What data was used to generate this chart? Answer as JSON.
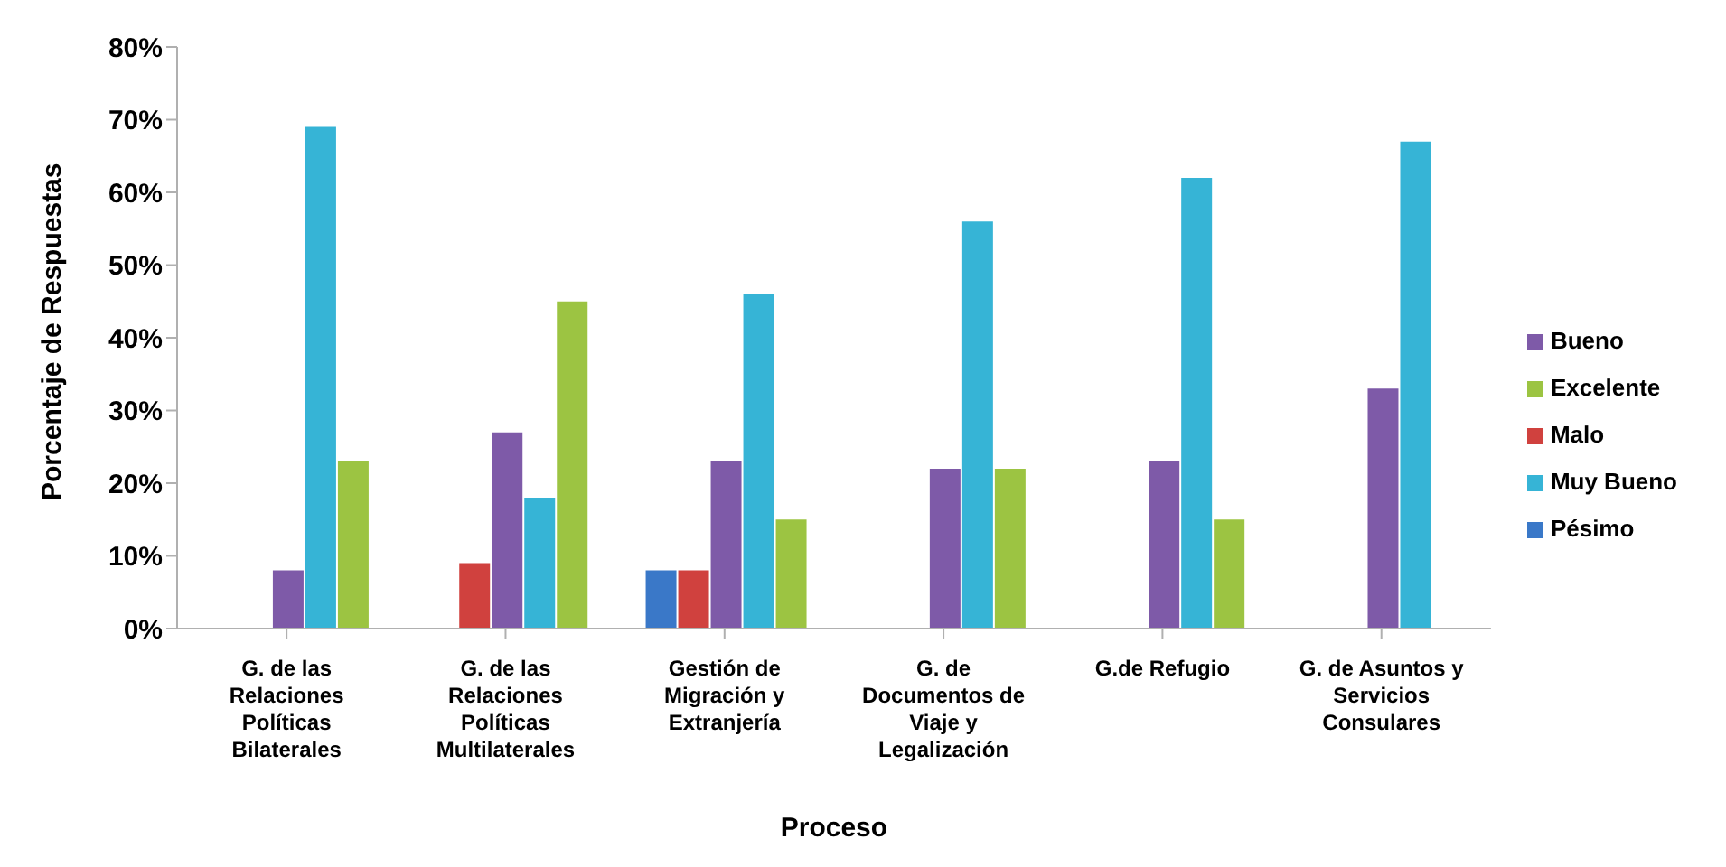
{
  "chart_data": {
    "type": "bar",
    "xlabel": "Proceso",
    "ylabel": "Porcentaje de Respuestas",
    "categories": [
      "G. de las Relaciones Políticas Bilaterales",
      "G. de las Relaciones Políticas Multilaterales",
      "Gestión de Migración y Extranjería",
      "G. de Documentos de Viaje y Legalización",
      "G.de Refugio",
      "G. de Asuntos y Servicios Consulares"
    ],
    "series": [
      {
        "name": "Pésimo",
        "color": "#3a78c8",
        "values": [
          null,
          null,
          8,
          null,
          null,
          null
        ]
      },
      {
        "name": "Malo",
        "color": "#d0413e",
        "values": [
          null,
          9,
          8,
          null,
          null,
          null
        ]
      },
      {
        "name": "Bueno",
        "color": "#7e5aa8",
        "values": [
          8,
          27,
          23,
          22,
          23,
          33
        ]
      },
      {
        "name": "Muy Bueno",
        "color": "#36b4d6",
        "values": [
          69,
          18,
          46,
          56,
          62,
          67
        ]
      },
      {
        "name": "Excelente",
        "color": "#9cc442",
        "values": [
          23,
          45,
          15,
          22,
          15,
          null
        ]
      }
    ],
    "ylim": [
      0,
      80
    ],
    "yticks": [
      {
        "value": 0,
        "label": "0%"
      },
      {
        "value": 10,
        "label": "10%"
      },
      {
        "value": 20,
        "label": "20%"
      },
      {
        "value": 30,
        "label": "30%"
      },
      {
        "value": 40,
        "label": "40%"
      },
      {
        "value": 50,
        "label": "50%"
      },
      {
        "value": 60,
        "label": "60%"
      },
      {
        "value": 70,
        "label": "70%"
      },
      {
        "value": 80,
        "label": "80%"
      }
    ],
    "grid": false,
    "legend": "right"
  }
}
